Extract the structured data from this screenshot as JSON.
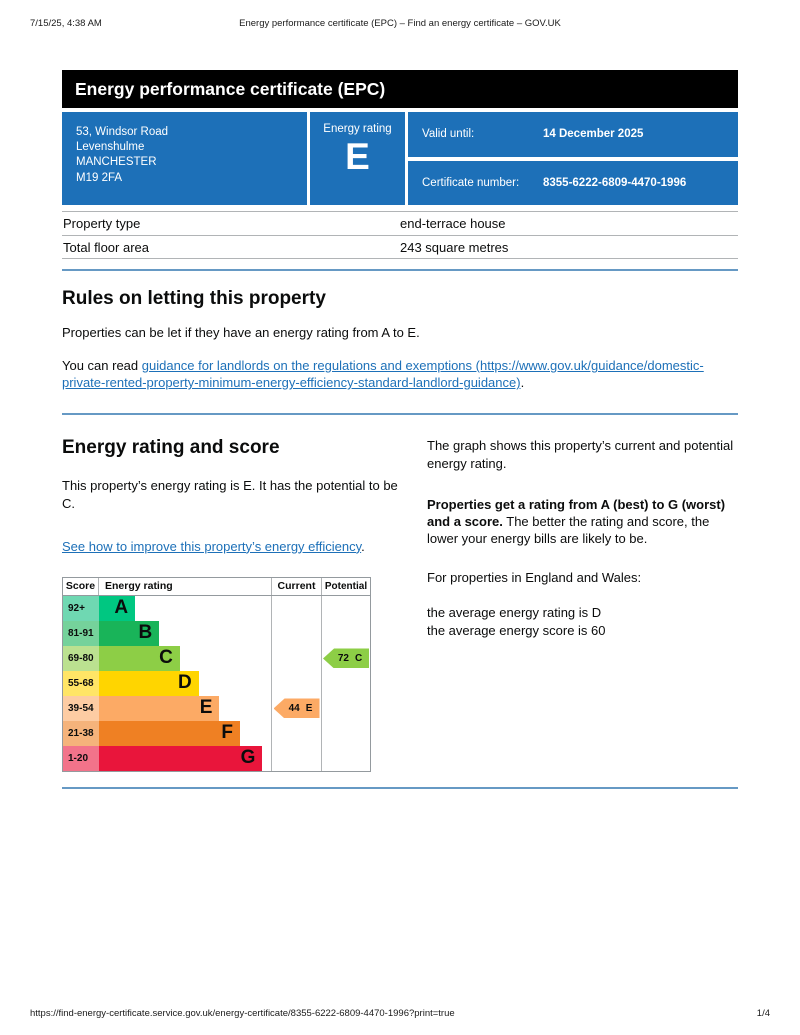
{
  "print_header": {
    "datetime": "7/15/25, 4:38 AM",
    "title": "Energy performance certificate (EPC) – Find an energy certificate – GOV.UK"
  },
  "print_footer": {
    "url": "https://find-energy-certificate.service.gov.uk/energy-certificate/8355-6222-6809-4470-1996?print=true",
    "page": "1/4"
  },
  "banner": {
    "title": "Energy performance certificate (EPC)"
  },
  "summary": {
    "accent_color": "#1d70b8",
    "address_lines": [
      "53, Windsor Road",
      "Levenshulme",
      "MANCHESTER",
      "M19 2FA"
    ],
    "rating_label": "Energy rating",
    "rating_value": "E",
    "valid_until_label": "Valid until:",
    "valid_until_value": "14 December 2025",
    "certificate_number_label": "Certificate number:",
    "certificate_number_value": "8355-6222-6809-4470-1996"
  },
  "property_table": {
    "rows": [
      {
        "label": "Property type",
        "value": "end-terrace house"
      },
      {
        "label": "Total floor area",
        "value": "243 square metres"
      }
    ]
  },
  "rules_section": {
    "heading": "Rules on letting this property",
    "para1": "Properties can be let if they have an energy rating from A to E.",
    "para2_prefix": "You can read ",
    "para2_link": "guidance for landlords on the regulations and exemptions (https://www.gov.uk/guidance/domestic-private-rented-property-minimum-energy-efficiency-standard-landlord-guidance)",
    "para2_suffix": "."
  },
  "rating_section": {
    "heading": "Energy rating and score",
    "para1": "This property’s energy rating is E. It has the potential to be C.",
    "link": "See how to improve this property’s energy efficiency",
    "link_suffix": ".",
    "right_para1": "The graph shows this property’s current and potential energy rating.",
    "right_para2_bold": "Properties get a rating from A (best) to G (worst) and a score.",
    "right_para2_rest": " The better the rating and score, the lower your energy bills are likely to be.",
    "right_para3": "For properties in England and Wales:",
    "right_line1": "the average energy rating is D",
    "right_line2": "the average energy score is 60"
  },
  "chart_data": {
    "type": "bar",
    "title": "Energy rating and score",
    "columns": [
      "Score",
      "Energy rating",
      "Current",
      "Potential"
    ],
    "bands": [
      {
        "score_range": "92+",
        "letter": "A",
        "color": "#00c781",
        "tint": "#6fd8b2",
        "bar_pct": 21
      },
      {
        "score_range": "81-91",
        "letter": "B",
        "color": "#19b459",
        "tint": "#75d29b",
        "bar_pct": 35
      },
      {
        "score_range": "69-80",
        "letter": "C",
        "color": "#8dce46",
        "tint": "#bbe190",
        "bar_pct": 47
      },
      {
        "score_range": "55-68",
        "letter": "D",
        "color": "#ffd500",
        "tint": "#ffe566",
        "bar_pct": 58
      },
      {
        "score_range": "39-54",
        "letter": "E",
        "color": "#fcaa65",
        "tint": "#fdcca3",
        "bar_pct": 70
      },
      {
        "score_range": "21-38",
        "letter": "F",
        "color": "#ef8023",
        "tint": "#f5b37b",
        "bar_pct": 82
      },
      {
        "score_range": "1-20",
        "letter": "G",
        "color": "#e9153b",
        "tint": "#f2738a",
        "bar_pct": 95
      }
    ],
    "current": {
      "score": 44,
      "letter": "E",
      "row": 4,
      "color": "#fcaa65"
    },
    "potential": {
      "score": 72,
      "letter": "C",
      "row": 2,
      "color": "#8dce46"
    }
  }
}
